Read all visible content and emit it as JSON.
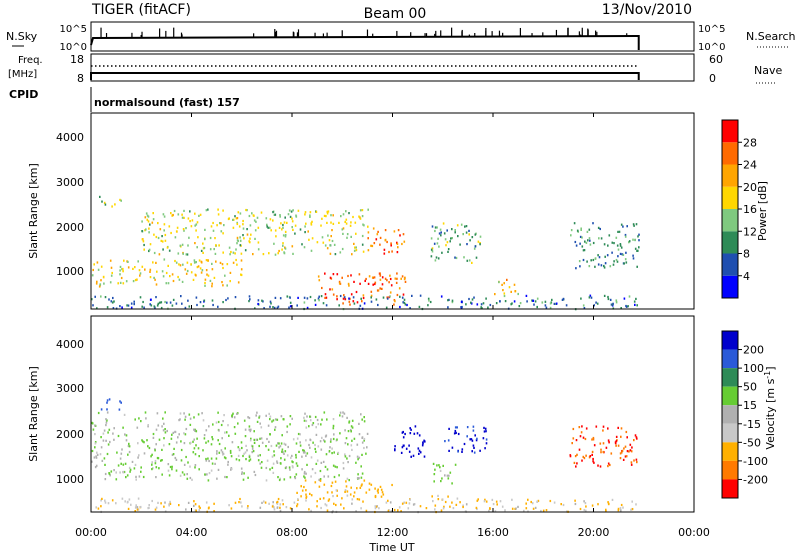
{
  "header": {
    "radar": "TIGER (fitACF)",
    "beam": "Beam 00",
    "date": "13/Nov/2010"
  },
  "nsky_panel": {
    "left_label": "N.Sky",
    "right_label": "N.Search",
    "left_ticks": [
      "10^5",
      "10^0"
    ],
    "right_ticks": [
      "10^5",
      "10^0"
    ]
  },
  "freq_panel": {
    "left_label_1": "Freq.",
    "left_label_2": "[MHz]",
    "right_label": "Nave",
    "left_ticks": [
      "18",
      "8"
    ],
    "right_ticks": [
      "60",
      "0"
    ]
  },
  "cpid": {
    "label": "CPID",
    "mode": "normalsound (fast) 157"
  },
  "time_axis": {
    "label": "Time UT",
    "ticks": [
      "00:00",
      "04:00",
      "08:00",
      "12:00",
      "16:00",
      "20:00",
      "00:00"
    ]
  },
  "chart_data": [
    {
      "type": "heatmap",
      "quantity": "Power",
      "ylabel": "Slant Range [km]",
      "colorbar_label": "Power [dB]",
      "x_range": [
        "00:00",
        "24:00"
      ],
      "ylim": [
        180,
        4500
      ],
      "y_ticks": [
        "1000",
        "2000",
        "3000",
        "4000"
      ],
      "colorbar_ticks": [
        "4",
        "8",
        "12",
        "16",
        "20",
        "24",
        "28"
      ],
      "colorbar_range": [
        0,
        30
      ],
      "colors": [
        "#0000ff",
        "#1f4fb0",
        "#2e8b57",
        "#7fc97f",
        "#ffd700",
        "#ffa500",
        "#ff6a00",
        "#ff0000"
      ],
      "scatter_regions": [
        {
          "t_start": 0.3,
          "t_end": 1.2,
          "range_start": 2450,
          "range_end": 2700,
          "value": 14
        },
        {
          "t_start": 0.0,
          "t_end": 6.0,
          "range_start": 700,
          "range_end": 1300,
          "value": 18
        },
        {
          "t_start": 2.0,
          "t_end": 11.0,
          "range_start": 1400,
          "range_end": 2400,
          "value": 16
        },
        {
          "t_start": 9.0,
          "t_end": 12.5,
          "range_start": 300,
          "range_end": 1000,
          "value": 27
        },
        {
          "t_start": 11.0,
          "t_end": 12.5,
          "range_start": 1400,
          "range_end": 2000,
          "value": 25
        },
        {
          "t_start": 13.5,
          "t_end": 15.5,
          "range_start": 1200,
          "range_end": 2100,
          "value": 12
        },
        {
          "t_start": 16.0,
          "t_end": 17.0,
          "range_start": 500,
          "range_end": 900,
          "value": 20
        },
        {
          "t_start": 19.0,
          "t_end": 21.8,
          "range_start": 1100,
          "range_end": 2100,
          "value": 10
        },
        {
          "t_start": 0.0,
          "t_end": 21.8,
          "range_start": 200,
          "range_end": 500,
          "value": 8
        }
      ]
    },
    {
      "type": "heatmap",
      "quantity": "Velocity",
      "ylabel": "Slant Range [km]",
      "colorbar_label": "Velocity [m s^-1]",
      "colorbar_unit_base": "Velocity [m s",
      "colorbar_unit_exp": "-1",
      "colorbar_unit_close": "]",
      "x_range": [
        "00:00",
        "24:00"
      ],
      "ylim": [
        180,
        4500
      ],
      "y_ticks": [
        "1000",
        "2000",
        "3000",
        "4000"
      ],
      "colorbar_ticks": [
        "200",
        "100",
        "50",
        "15",
        "-15",
        "-50",
        "-100",
        "-200"
      ],
      "colors": [
        "#0000cc",
        "#2a5ad8",
        "#2e8b57",
        "#66cc33",
        "#b0b0b0",
        "#c8c8c8",
        "#ffb000",
        "#ff7a00",
        "#ff0000"
      ],
      "scatter_regions": [
        {
          "t_start": 0.3,
          "t_end": 1.2,
          "range_start": 2450,
          "range_end": 2700,
          "value": 100
        },
        {
          "t_start": 0.0,
          "t_end": 11.0,
          "range_start": 900,
          "range_end": 2400,
          "value": 0
        },
        {
          "t_start": 8.0,
          "t_end": 12.0,
          "range_start": 450,
          "range_end": 900,
          "value": -50
        },
        {
          "t_start": 12.0,
          "t_end": 13.3,
          "range_start": 1400,
          "range_end": 2100,
          "value": 200
        },
        {
          "t_start": 14.0,
          "t_end": 15.8,
          "range_start": 1500,
          "range_end": 2100,
          "value": 150
        },
        {
          "t_start": 13.5,
          "t_end": 14.5,
          "range_start": 800,
          "range_end": 1300,
          "value": 0
        },
        {
          "t_start": 13.5,
          "t_end": 14.2,
          "range_start": 300,
          "range_end": 600,
          "value": -50
        },
        {
          "t_start": 19.0,
          "t_end": 21.8,
          "range_start": 1200,
          "range_end": 2100,
          "value": -150
        },
        {
          "t_start": 0.0,
          "t_end": 21.8,
          "range_start": 200,
          "range_end": 500,
          "value": -30
        }
      ]
    }
  ]
}
